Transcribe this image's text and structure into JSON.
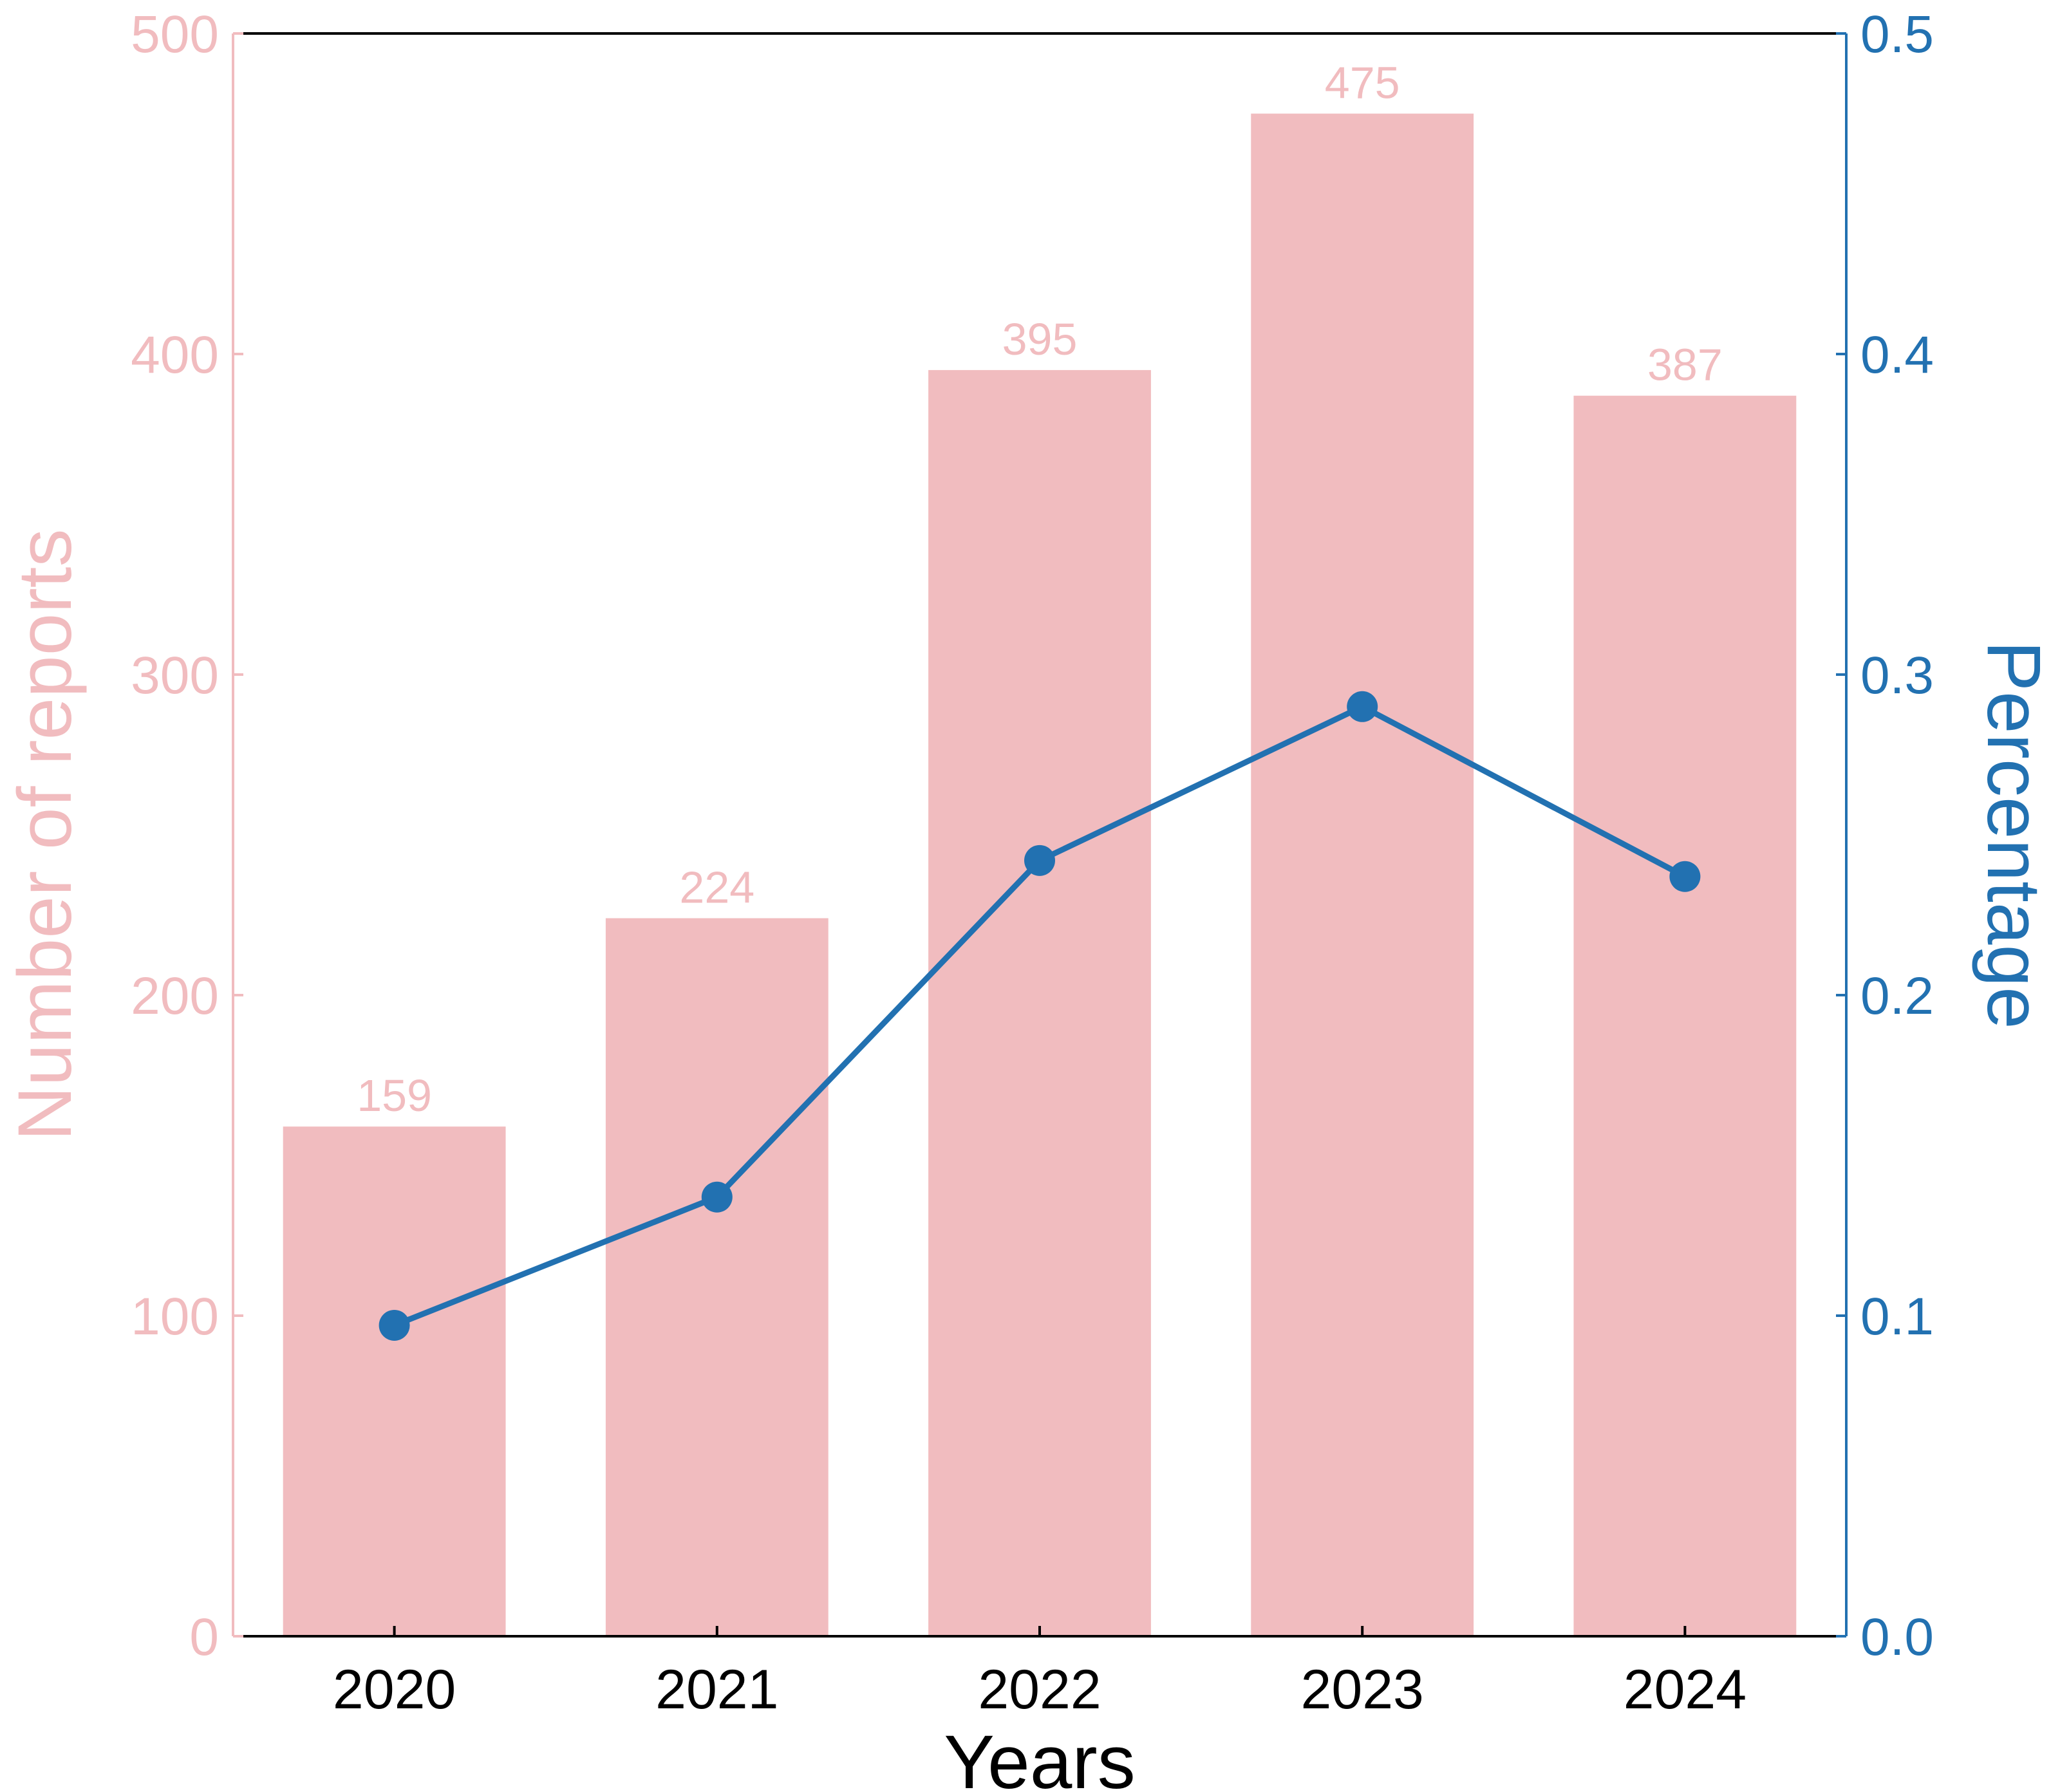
{
  "chart_data": {
    "type": "bar",
    "categories": [
      "2020",
      "2021",
      "2022",
      "2023",
      "2024"
    ],
    "xlabel": "Years",
    "series": [
      {
        "type": "bar",
        "axis": "left",
        "color": "#f1bcbf",
        "values": [
          159,
          224,
          395,
          475,
          387
        ],
        "data_labels": [
          "159",
          "224",
          "395",
          "475",
          "387"
        ]
      },
      {
        "type": "line",
        "axis": "right",
        "color": "#2271b1",
        "marker": "circle",
        "values": [
          0.097,
          0.137,
          0.242,
          0.29,
          0.237
        ]
      }
    ],
    "y_left": {
      "label": "Number of reports",
      "lim": [
        0,
        500
      ],
      "ticks": [
        0,
        100,
        200,
        300,
        400,
        500
      ],
      "tick_labels": [
        "0",
        "100",
        "200",
        "300",
        "400",
        "500"
      ],
      "color": "#f1bcbf"
    },
    "y_right": {
      "label": "Percentage",
      "lim": [
        0,
        0.5
      ],
      "ticks": [
        0,
        0.1,
        0.2,
        0.3,
        0.4,
        0.5
      ],
      "tick_labels": [
        "0.0",
        "0.1",
        "0.2",
        "0.3",
        "0.4",
        "0.5"
      ],
      "color": "#2271b1"
    },
    "grid": false,
    "legend": "none"
  }
}
